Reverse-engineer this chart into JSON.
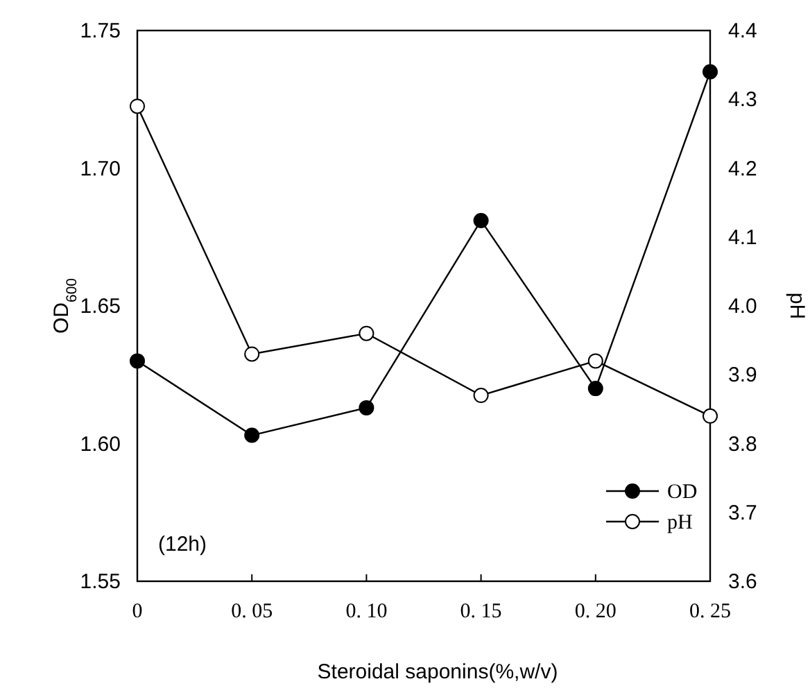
{
  "chart_data": {
    "type": "line",
    "xlabel": "Steroidal saponins(%,w/v)",
    "ylabel": "OD$_{600}$",
    "y2label": "pH",
    "categories": [
      "0",
      "0. 05",
      "0. 10",
      "0. 15",
      "0. 20",
      "0. 25"
    ],
    "ylim": [
      1.55,
      1.75
    ],
    "yticks": [
      {
        "value": 1.55,
        "label": "1.55"
      },
      {
        "value": 1.6,
        "label": "1.60"
      },
      {
        "value": 1.65,
        "label": "1.65"
      },
      {
        "value": 1.7,
        "label": "1.70"
      },
      {
        "value": 1.75,
        "label": "1.75"
      }
    ],
    "y2lim": [
      3.6,
      4.4
    ],
    "y2ticks": [
      {
        "value": 3.6,
        "label": "3.6"
      },
      {
        "value": 3.7,
        "label": "3.7"
      },
      {
        "value": 3.8,
        "label": "3.8"
      },
      {
        "value": 3.9,
        "label": "3.9"
      },
      {
        "value": 4,
        "label": "4.0"
      },
      {
        "value": 4.1,
        "label": "4.1"
      },
      {
        "value": 4.2,
        "label": "4.2"
      },
      {
        "value": 4.3,
        "label": "4.3"
      },
      {
        "value": 4.4,
        "label": "4.4"
      }
    ],
    "series": [
      {
        "name": "OD",
        "color": "#000000",
        "marker": "circle",
        "values": [
          1.63,
          1.603,
          1.613,
          1.681,
          1.62,
          1.735
        ]
      },
      {
        "name": "pH",
        "color": "#000000",
        "marker": "open circle",
        "axis": "y2",
        "values": [
          4.29,
          3.93,
          3.96,
          3.87,
          3.92,
          3.84
        ]
      }
    ],
    "annotations": [
      "(12h)"
    ],
    "legend": "bottom right",
    "grid": false,
    "line_style": "solid"
  }
}
